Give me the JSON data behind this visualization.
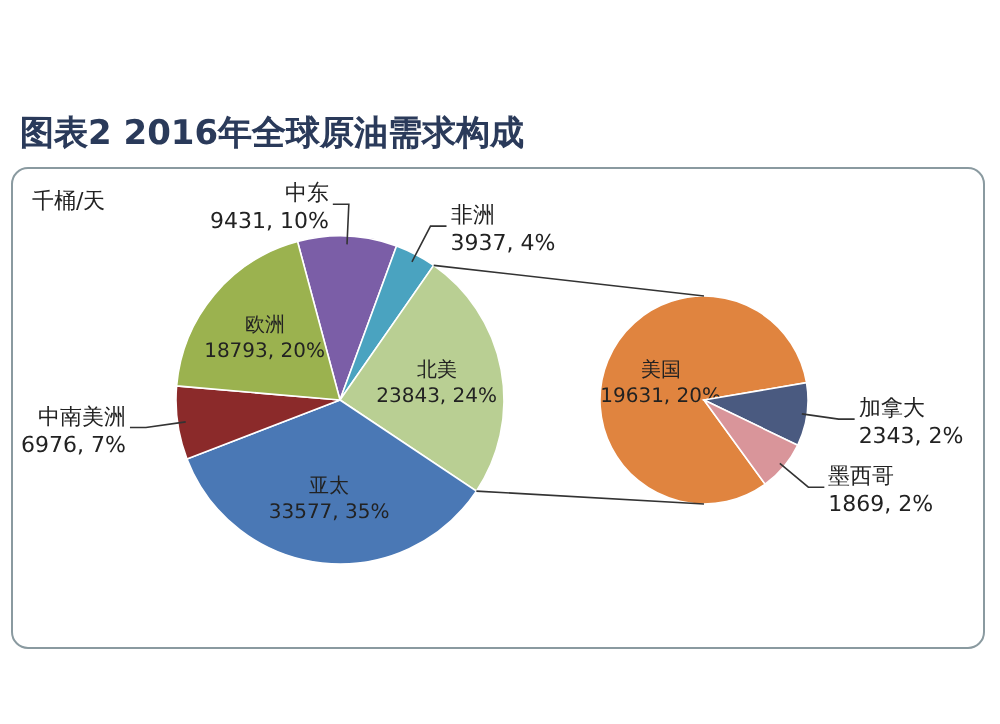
{
  "chart_data": [
    {
      "type": "pie",
      "title": "图表2 2016年全球原油需求构成",
      "annotations": [
        "千桶/天"
      ],
      "categories": [
        "中东",
        "非洲",
        "北美",
        "亚太",
        "中南美洲",
        "欧洲"
      ],
      "values": [
        9431,
        3937,
        23843,
        33577,
        6976,
        18793
      ],
      "colors": [
        "#7b5ea7",
        "#4aa3c0",
        "#b9cf93",
        "#4a78b5",
        "#8b2a2a",
        "#9bb24f"
      ],
      "value_labels": [
        "9431, 10%",
        "3937, 4%",
        "23843, 24%",
        "33577, 35%",
        "6976, 7%",
        "18793, 20%"
      ]
    },
    {
      "type": "pie",
      "categories": [
        "美国",
        "加拿大",
        "墨西哥"
      ],
      "values": [
        19631,
        2343,
        1869
      ],
      "colors": [
        "#e0843f",
        "#4a5a80",
        "#d9959a"
      ],
      "value_labels": [
        "19631, 20%",
        "2343, 2%",
        "1869, 2%"
      ]
    }
  ]
}
